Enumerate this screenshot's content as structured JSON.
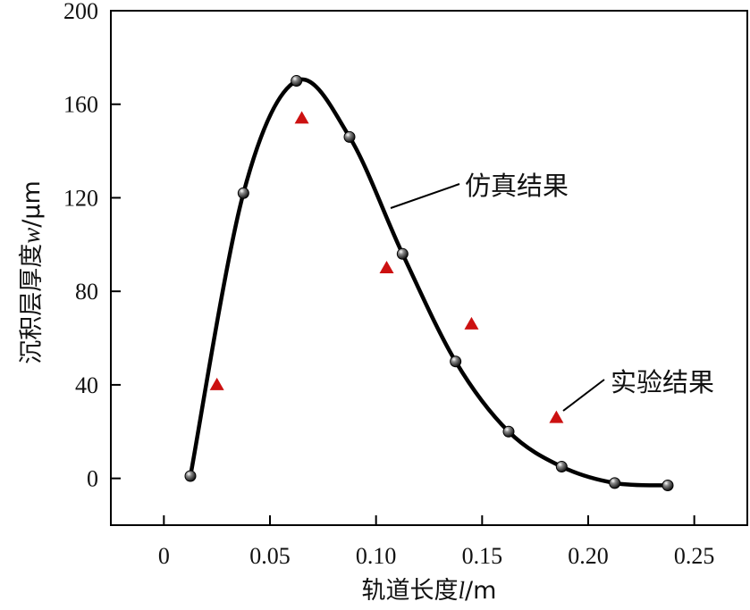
{
  "chart_data": {
    "type": "line",
    "title": "",
    "xlabel": {
      "prefix": "轨道长度",
      "var": "l",
      "unit": "/m"
    },
    "ylabel": {
      "prefix": "沉积层厚度",
      "var": "w",
      "unit": "/μm"
    },
    "xlim": [
      -0.025,
      0.275
    ],
    "ylim": [
      -20,
      200
    ],
    "xticks": [
      0,
      0.05,
      0.1,
      0.15,
      0.2,
      0.25
    ],
    "xtick_labels": [
      "0",
      "0.05",
      "0.10",
      "0.15",
      "0.20",
      "0.25"
    ],
    "yticks": [
      0,
      40,
      80,
      120,
      160,
      200
    ],
    "ytick_labels": [
      "0",
      "40",
      "80",
      "120",
      "160",
      "200"
    ],
    "grid": false,
    "series": [
      {
        "name": "仿真结果",
        "style": "smooth-line-with-spheres",
        "color": "#000000",
        "x": [
          0.0125,
          0.0375,
          0.0625,
          0.0875,
          0.1125,
          0.1375,
          0.1625,
          0.1875,
          0.2125,
          0.2375
        ],
        "y": [
          1,
          122,
          170,
          146,
          96,
          50,
          20,
          5,
          -2,
          -3
        ]
      },
      {
        "name": "实验结果",
        "style": "triangle-marker",
        "color": "#cc1111",
        "x": [
          0.025,
          0.065,
          0.105,
          0.145,
          0.185
        ],
        "y": [
          40,
          154,
          90,
          66,
          26
        ]
      }
    ],
    "annotations": [
      {
        "text": "仿真结果",
        "points_to_series": 0
      },
      {
        "text": "实验结果",
        "points_to_series": 1
      }
    ]
  }
}
